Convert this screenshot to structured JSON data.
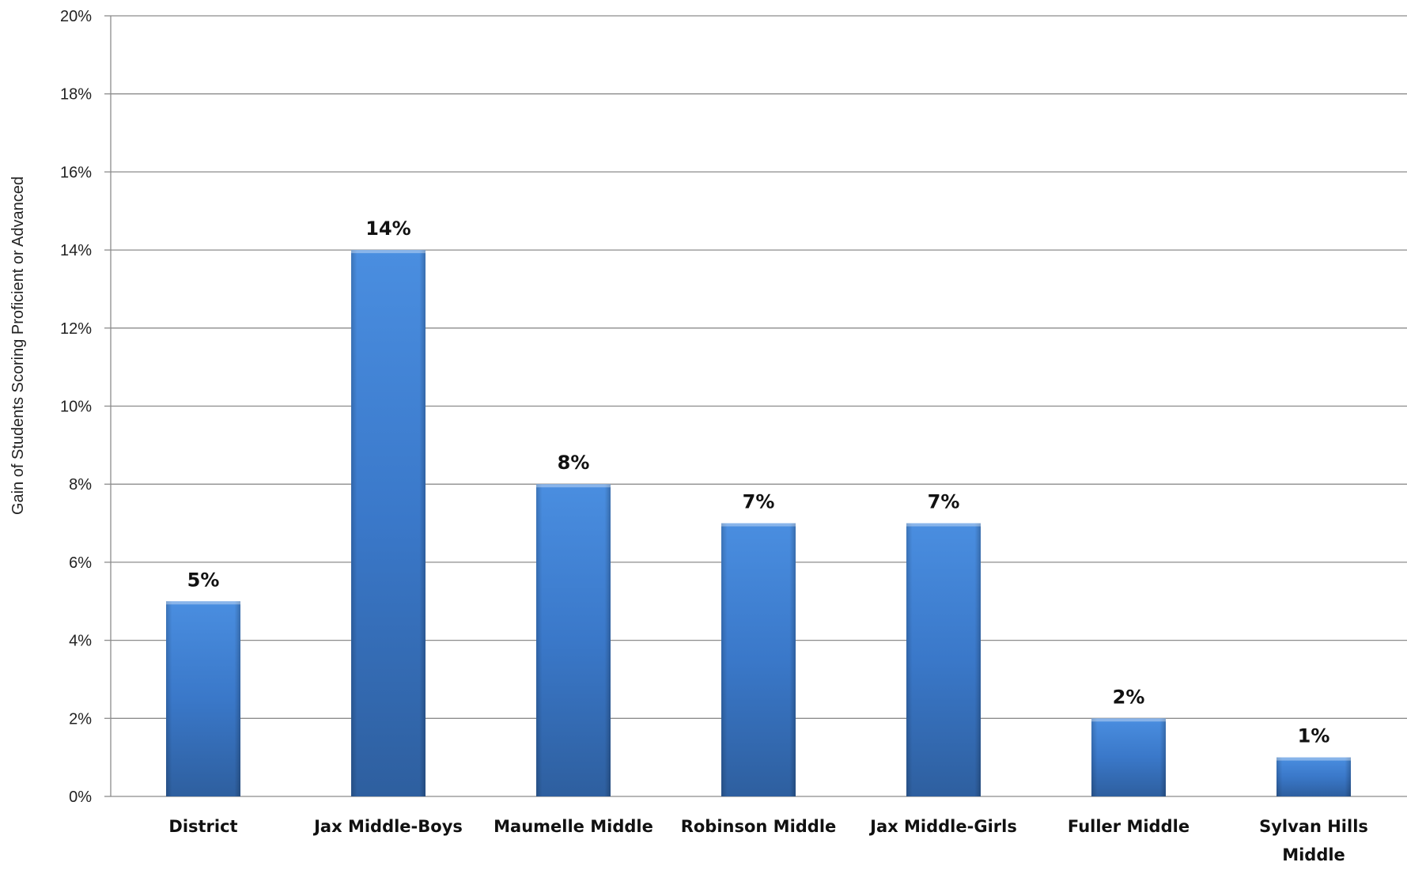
{
  "chart_data": {
    "type": "bar",
    "title": "",
    "xlabel": "",
    "ylabel": "Gain of Students Scoring Proficient or Advanced",
    "categories": [
      [
        "District"
      ],
      [
        "Jax Middle-Boys"
      ],
      [
        "Maumelle Middle"
      ],
      [
        "Robinson Middle"
      ],
      [
        "Jax Middle-Girls"
      ],
      [
        "Fuller Middle"
      ],
      [
        "Sylvan Hills",
        "Middle"
      ]
    ],
    "values": [
      5,
      14,
      8,
      7,
      7,
      2,
      1
    ],
    "data_labels": [
      "5%",
      "14%",
      "8%",
      "7%",
      "7%",
      "2%",
      "1%"
    ],
    "ylim": [
      0,
      20
    ],
    "yticks": [
      0,
      2,
      4,
      6,
      8,
      10,
      12,
      14,
      16,
      18,
      20
    ],
    "ytick_labels": [
      "0%",
      "2%",
      "4%",
      "6%",
      "8%",
      "10%",
      "12%",
      "14%",
      "16%",
      "18%",
      "20%"
    ],
    "grid": true,
    "legend": "none",
    "colors": {
      "bar_light": "#4a8ee0",
      "bar_mid": "#3a78c9",
      "bar_dark": "#2e5f9f"
    }
  }
}
